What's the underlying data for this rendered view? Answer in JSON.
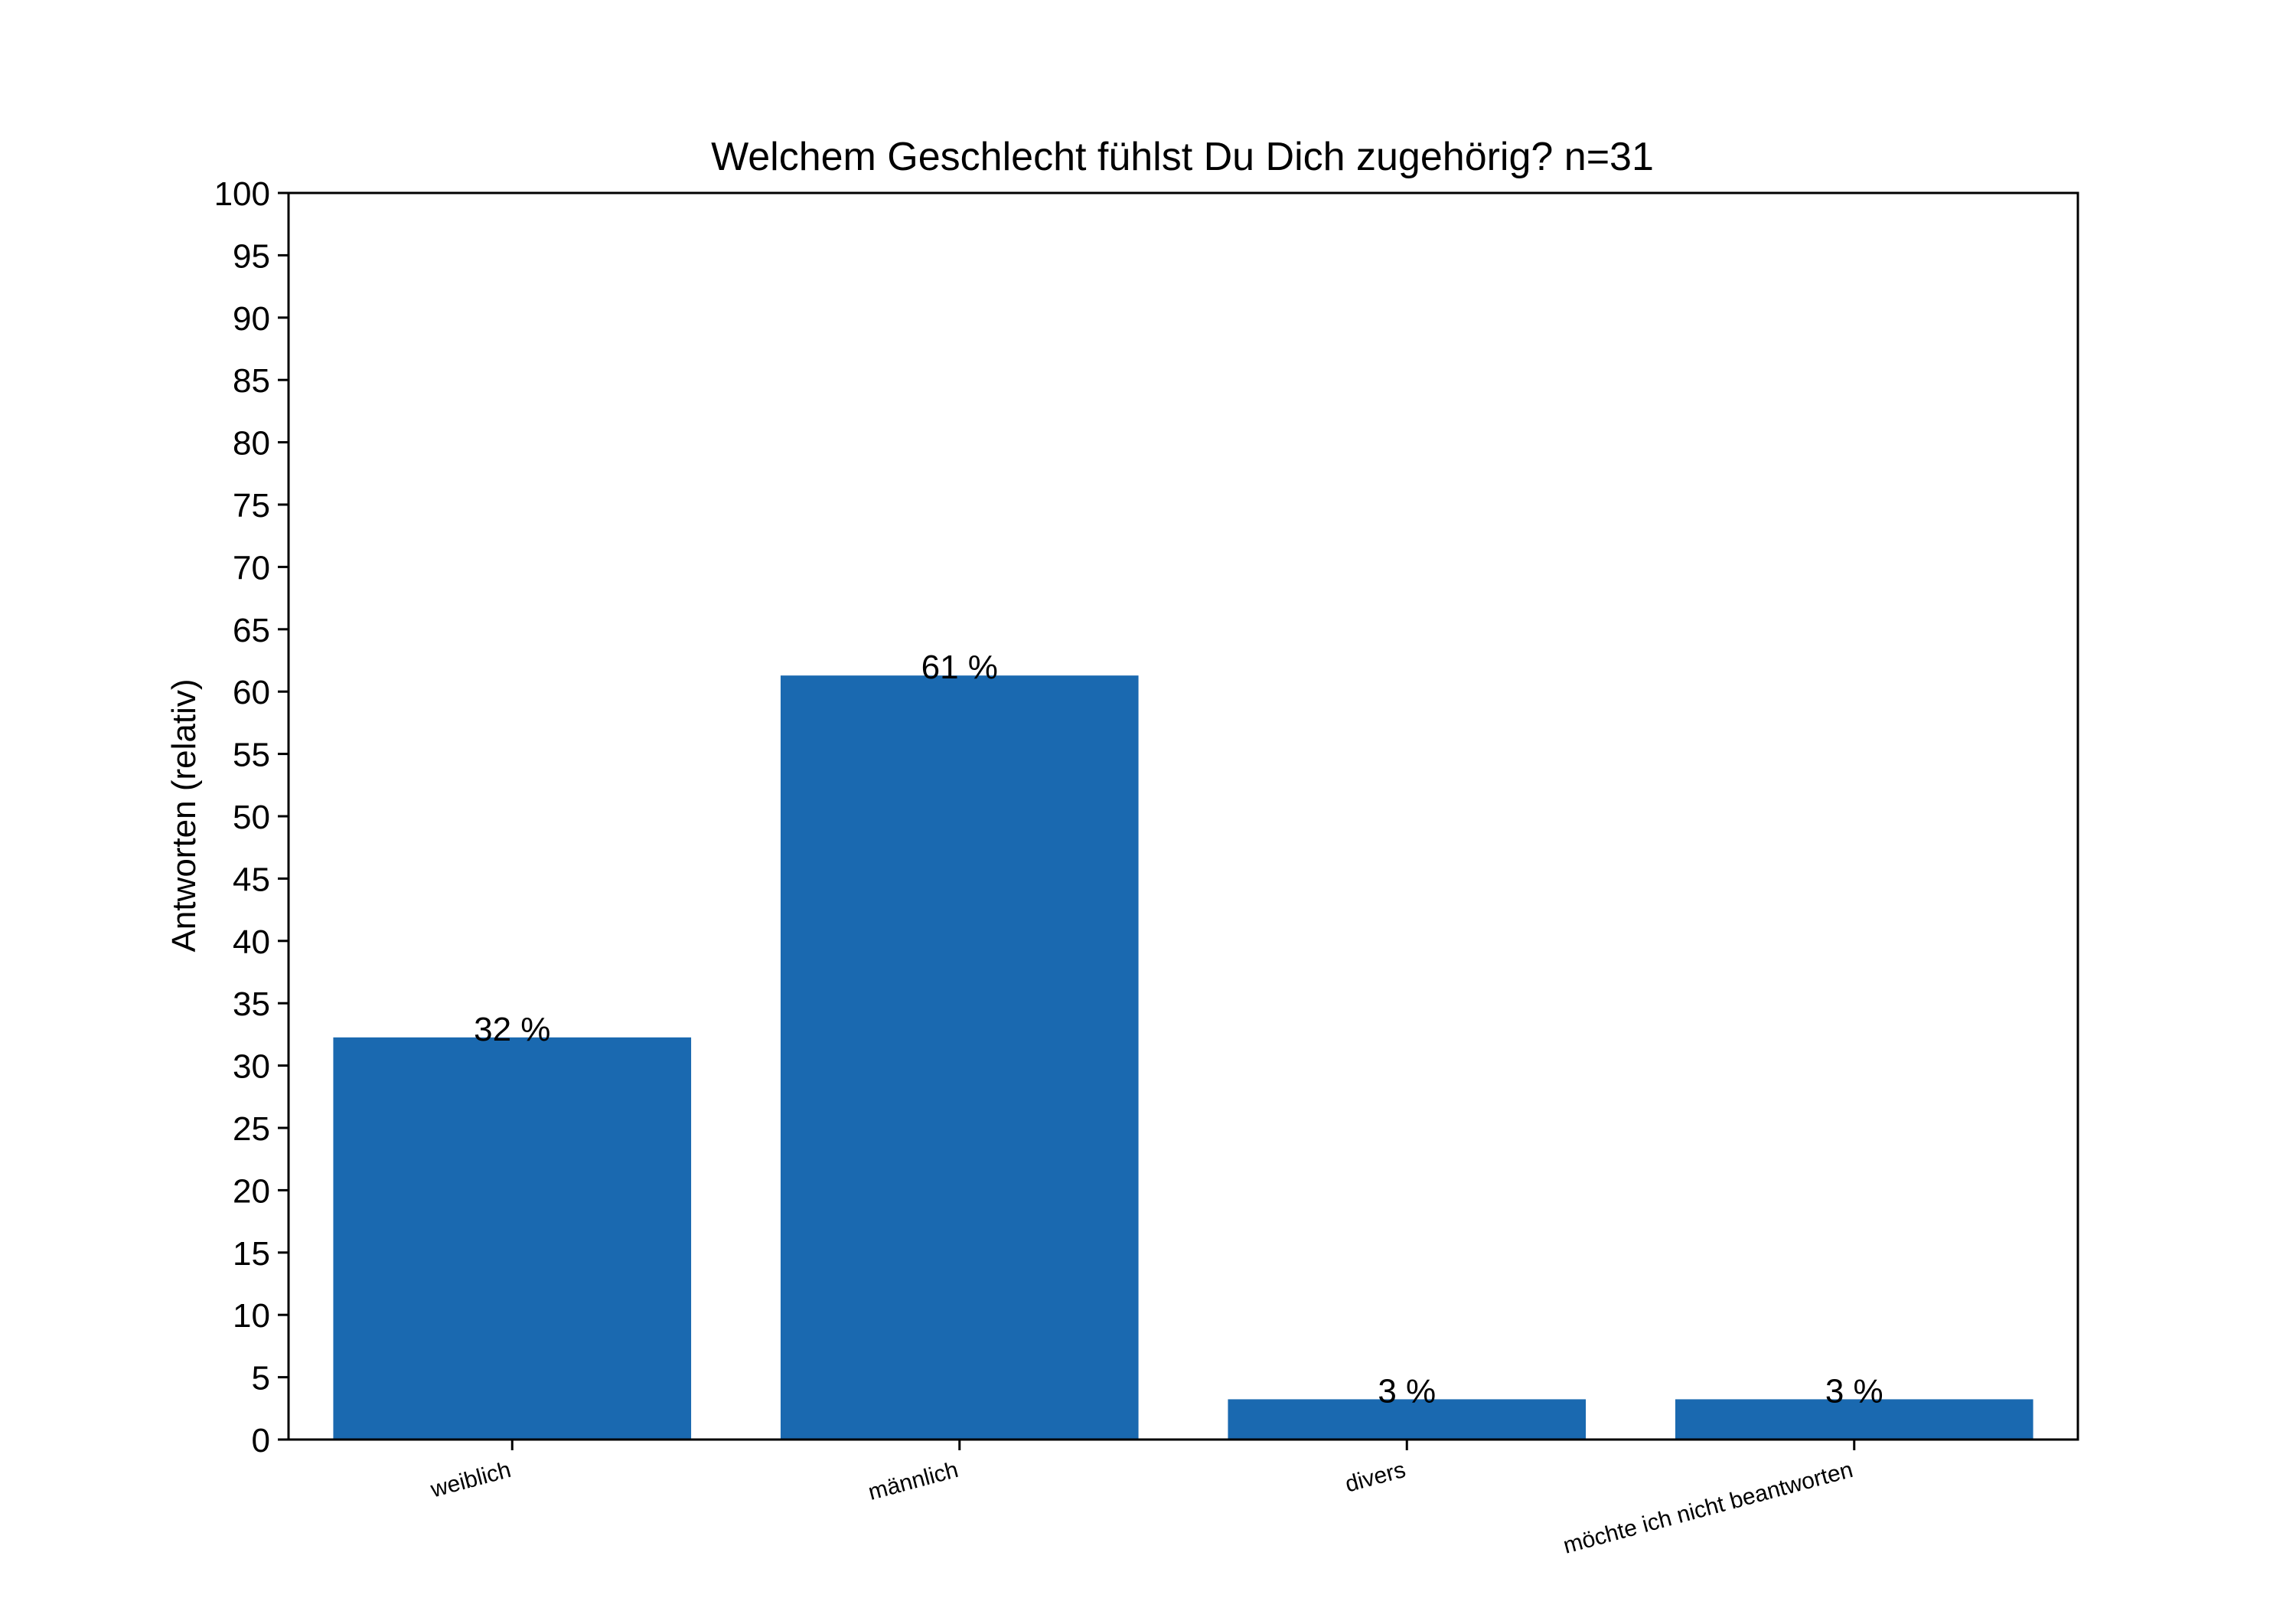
{
  "chart_data": {
    "type": "bar",
    "title": "Welchem Geschlecht fühlst Du Dich zugehörig? n=31",
    "xlabel": "",
    "ylabel": "Antworten (relativ)",
    "categories": [
      "weiblich",
      "männlich",
      "divers",
      "möchte ich nicht beantworten"
    ],
    "values": [
      32.26,
      61.29,
      3.23,
      3.23
    ],
    "data_labels": [
      "32 %",
      "61 %",
      "3 %",
      "3 %"
    ],
    "ylim": [
      0,
      100
    ],
    "yticks": [
      0,
      5,
      10,
      15,
      20,
      25,
      30,
      35,
      40,
      45,
      50,
      55,
      60,
      65,
      70,
      75,
      80,
      85,
      90,
      95,
      100
    ],
    "bar_color": "#1a69b0",
    "grid": false,
    "legend": "none"
  }
}
